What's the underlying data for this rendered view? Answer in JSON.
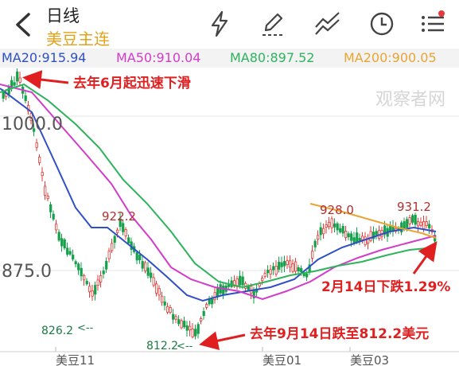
{
  "header": {
    "title": "日线",
    "subtitle": "美豆主连"
  },
  "toolbar": {
    "icons": [
      "lightning-icon",
      "pencil-icon",
      "trend-lines-icon",
      "clock-icon",
      "menu-icon"
    ],
    "menu_badge_color": "#e8383d"
  },
  "ma_legend": {
    "ma20": "MA20:915.94",
    "ma50": "MA50:910.04",
    "ma80": "MA80:897.52",
    "ma200": "MA200:900.05"
  },
  "colors": {
    "ma20": "#2f4fc6",
    "ma50": "#d23cc8",
    "ma80": "#2db35c",
    "ma200": "#e8a534",
    "up": "#e53935",
    "down": "#15a04a",
    "annotation": "#e02020"
  },
  "watermark": "观察者网",
  "chart_data": {
    "type": "candlestick",
    "instrument": "美豆主连",
    "y_tick_labels": [
      "1000.0",
      "875.0"
    ],
    "y_ticks": [
      1000,
      875
    ],
    "ylim": [
      800,
      1050
    ],
    "x_tick_labels": [
      "美豆11",
      "美豆01",
      "美豆03"
    ],
    "price_labels": [
      "922.2",
      "928.0",
      "931.2",
      "826.2",
      "812.2"
    ],
    "series": [
      {
        "name": "MA20",
        "last": 915.94
      },
      {
        "name": "MA50",
        "last": 910.04
      },
      {
        "name": "MA80",
        "last": 897.52
      },
      {
        "name": "MA200",
        "last": 900.05
      }
    ],
    "annotations": {
      "a1": "去年6月起迅速下滑",
      "a2": "2月14日下跌1.29%",
      "a3": "去年9月14日跌至812.2美元"
    }
  }
}
